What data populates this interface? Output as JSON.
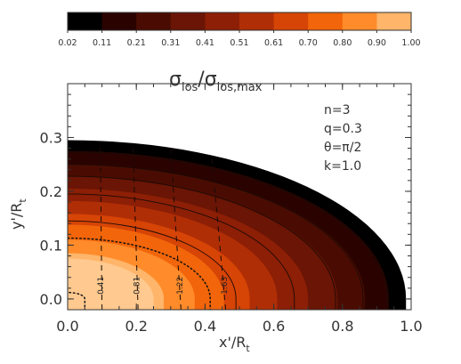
{
  "chart_data": {
    "type": "heatmap",
    "colorbar": {
      "title_main": "σ",
      "title_main_sub": "los",
      "title_sep": "/σ",
      "title_den_sub": "los,max",
      "tick_labels": [
        "0.02",
        "0.11",
        "0.21",
        "0.31",
        "0.41",
        "0.51",
        "0.61",
        "0.70",
        "0.80",
        "0.90",
        "1.00"
      ],
      "colors": [
        "#000000",
        "#2a0300",
        "#4a0c02",
        "#6a1505",
        "#8c1f06",
        "#b02e06",
        "#d64406",
        "#f2650a",
        "#ff8b2a",
        "#ffb56a"
      ]
    },
    "annotations": [
      "n=3",
      "q=0.3",
      "θ=π/2",
      "k=1.0"
    ],
    "x_axis": {
      "label_main": "x'/R",
      "label_sub": "t",
      "range": [
        0.0,
        1.0
      ],
      "tick_labels": [
        "0.0",
        "0.2",
        "0.4",
        "0.6",
        "0.8",
        "1.0"
      ],
      "ticks": [
        0.0,
        0.2,
        0.4,
        0.6,
        0.8,
        1.0
      ]
    },
    "y_axis": {
      "label_main": "y'/R",
      "label_sub": "t",
      "range": [
        -0.02,
        0.4
      ],
      "tick_labels": [
        "0.0",
        "0.1",
        "0.2",
        "0.3"
      ],
      "ticks": [
        0.0,
        0.1,
        0.2,
        0.3
      ]
    },
    "outer_semi_axes": {
      "a": 0.985,
      "b": 0.295
    },
    "color_bands": [
      {
        "a": 0.985,
        "b": 0.295,
        "color": "#000000"
      },
      {
        "a": 0.935,
        "b": 0.275,
        "color": "#2a0300"
      },
      {
        "a": 0.865,
        "b": 0.25,
        "color": "#4a0c02"
      },
      {
        "a": 0.785,
        "b": 0.228,
        "color": "#6a1505"
      },
      {
        "a": 0.7,
        "b": 0.205,
        "color": "#8c1f06"
      },
      {
        "a": 0.61,
        "b": 0.182,
        "color": "#b02e06"
      },
      {
        "a": 0.53,
        "b": 0.158,
        "color": "#d64406"
      },
      {
        "a": 0.455,
        "b": 0.138,
        "color": "#f2650a"
      },
      {
        "a": 0.37,
        "b": 0.11,
        "color": "#ff8b2a"
      },
      {
        "a": 0.28,
        "b": 0.085,
        "color": "#ffb56a"
      },
      {
        "a": 0.25,
        "b": 0.075,
        "color": "#ffc98f"
      }
    ],
    "solid_contours": [
      {
        "a": 0.93,
        "b": 0.273
      },
      {
        "a": 0.86,
        "b": 0.25
      },
      {
        "a": 0.78,
        "b": 0.228
      },
      {
        "a": 0.66,
        "b": 0.195
      },
      {
        "a": 0.49,
        "b": 0.145
      }
    ],
    "dotted_contours": [
      {
        "a": 0.415,
        "b": 0.113
      },
      {
        "a": 0.05,
        "b": 0.012
      }
    ],
    "dashed_lines": [
      {
        "x_bottom": 0.1,
        "x_top": 0.095,
        "y_top": 0.292,
        "label": "0.41"
      },
      {
        "x_bottom": 0.205,
        "x_top": 0.19,
        "y_top": 0.287,
        "label": "0.81"
      },
      {
        "x_bottom": 0.33,
        "x_top": 0.3,
        "y_top": 0.28,
        "label": "1.22"
      },
      {
        "x_bottom": 0.46,
        "x_top": 0.42,
        "y_top": 0.262,
        "label": "1.63"
      }
    ]
  }
}
